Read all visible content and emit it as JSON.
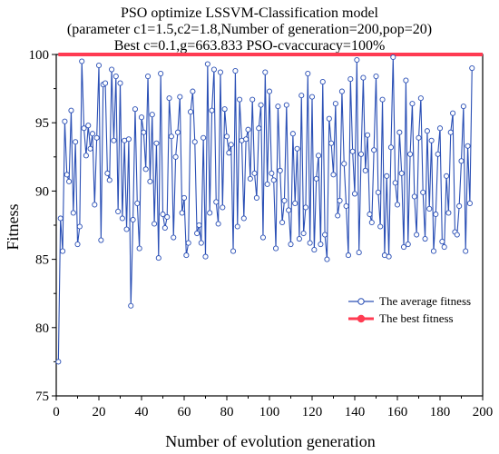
{
  "chart_data": {
    "type": "line",
    "title": "PSO optimize LSSVM-Classification model",
    "subtitle_lines": [
      "(parameter c1=1.5,c2=1.8,Number of generation=200,pop=20)",
      "Best c=0.1,g=663.833 PSO-cvaccuracy=100%"
    ],
    "xlabel": "Number of evolution generation",
    "ylabel": "Fitness",
    "xlim": [
      0,
      200
    ],
    "ylim": [
      75,
      100
    ],
    "x_ticks": [
      0,
      20,
      40,
      60,
      80,
      100,
      120,
      140,
      160,
      180,
      200
    ],
    "y_ticks": [
      75,
      80,
      85,
      90,
      95,
      100
    ],
    "legend": {
      "position": "lower-right"
    },
    "grid": false,
    "series": [
      {
        "name": "The average fitness",
        "color": "#2a4fb5",
        "marker": "open-circle",
        "x_start": 1,
        "x_step": 1,
        "values": [
          77.5,
          88.0,
          85.6,
          95.1,
          91.2,
          90.7,
          95.9,
          88.4,
          93.6,
          86.1,
          87.4,
          99.5,
          94.6,
          92.6,
          94.8,
          93.1,
          94.2,
          89.0,
          93.9,
          99.2,
          86.4,
          97.8,
          97.9,
          91.3,
          90.8,
          98.9,
          93.7,
          98.4,
          88.5,
          97.9,
          88.0,
          93.7,
          87.2,
          93.8,
          81.6,
          87.9,
          96.0,
          89.1,
          85.8,
          95.4,
          94.3,
          91.6,
          98.4,
          90.7,
          95.6,
          87.6,
          93.5,
          85.1,
          98.6,
          88.3,
          87.3,
          88.1,
          96.8,
          94.0,
          86.6,
          92.5,
          94.3,
          96.9,
          88.4,
          89.5,
          85.3,
          86.2,
          95.8,
          97.3,
          93.6,
          86.9,
          87.5,
          86.2,
          93.9,
          85.2,
          99.3,
          88.4,
          95.9,
          98.9,
          89.2,
          87.6,
          98.7,
          88.8,
          96.0,
          94.0,
          92.8,
          93.4,
          85.6,
          98.8,
          87.4,
          96.7,
          93.7,
          88.0,
          93.8,
          94.5,
          90.9,
          96.7,
          91.3,
          89.5,
          94.6,
          96.3,
          86.6,
          98.7,
          90.5,
          97.3,
          91.3,
          90.8,
          85.8,
          96.2,
          91.5,
          87.7,
          89.3,
          96.3,
          88.6,
          86.1,
          94.2,
          89.1,
          93.1,
          86.5,
          97.0,
          86.9,
          88.8,
          98.6,
          86.2,
          96.9,
          85.7,
          90.9,
          92.6,
          86.1,
          98.0,
          86.8,
          85.0,
          95.3,
          93.5,
          91.2,
          96.4,
          88.2,
          89.3,
          97.3,
          92.0,
          88.9,
          85.3,
          98.2,
          92.9,
          89.8,
          99.6,
          85.5,
          92.7,
          98.3,
          91.5,
          94.1,
          88.3,
          87.7,
          93.0,
          98.4,
          89.9,
          87.4,
          96.7,
          85.3,
          91.1,
          85.2,
          93.2,
          99.8,
          90.6,
          89.0,
          94.3,
          91.3,
          85.9,
          98.1,
          86.1,
          92.7,
          96.4,
          89.6,
          86.8,
          93.9,
          96.8,
          89.9,
          86.5,
          94.4,
          88.7,
          93.7,
          85.6,
          88.3,
          92.7,
          94.6,
          86.3,
          85.9,
          91.1,
          88.4,
          94.3,
          95.7,
          87.0,
          86.8,
          88.9,
          92.2,
          96.2,
          85.6,
          93.3,
          89.1,
          99.0
        ]
      },
      {
        "name": "The best fitness",
        "color": "#ff3b52",
        "marker": "filled-circle",
        "x": [
          1,
          200
        ],
        "values": [
          100,
          100
        ]
      }
    ]
  }
}
